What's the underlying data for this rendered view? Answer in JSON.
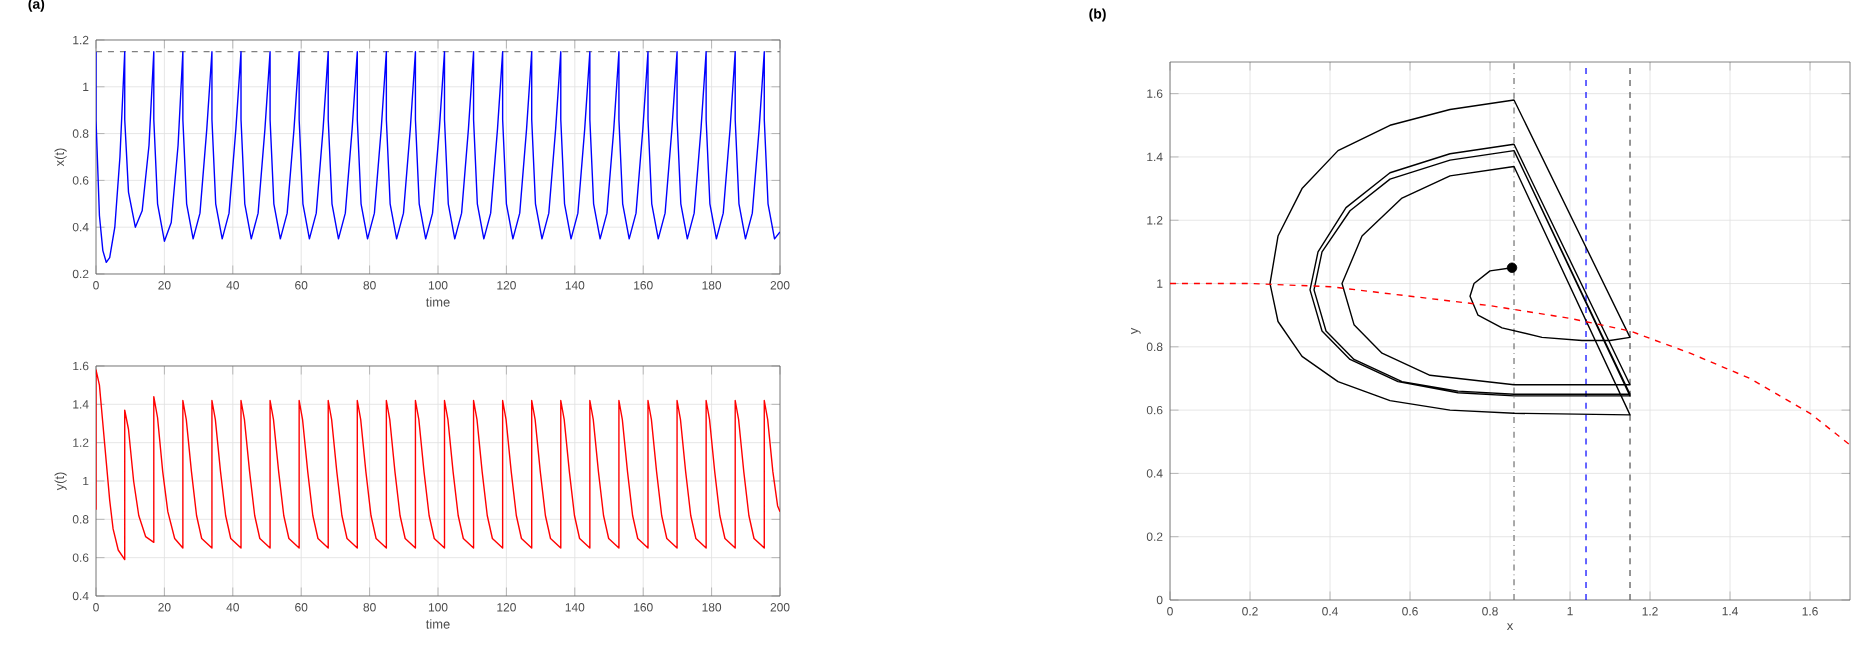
{
  "chart_data": [
    {
      "type": "line",
      "title": "(a)",
      "xlabel": "time",
      "ylabel": "x(t)",
      "xlim": [
        0,
        200
      ],
      "ylim": [
        0.2,
        1.2
      ],
      "xticks": [
        0,
        20,
        40,
        60,
        80,
        100,
        120,
        140,
        160,
        180,
        200
      ],
      "yticks": [
        0.2,
        0.4,
        0.6,
        0.8,
        1,
        1.2
      ],
      "grid": true,
      "ref_lines": [
        {
          "axis": "y",
          "value": 1.15,
          "color": "#808080",
          "line_style": "dashed"
        }
      ],
      "series": [
        {
          "color": "#0000ff",
          "line_style": "solid",
          "x": [
            0,
            0,
            1,
            2,
            3,
            4,
            5.5,
            7,
            8.4,
            8.4,
            9.5,
            11.5,
            13.5,
            15.5,
            16.9,
            16.9,
            18,
            20,
            22,
            24,
            25.4,
            25.4,
            26.5,
            28.4,
            30.4,
            32.4,
            33.9,
            33.9,
            35,
            36.9,
            38.9,
            40.9,
            42.4,
            42.4,
            43.5,
            45.4,
            47.4,
            49.4,
            50.9,
            50.9,
            52,
            53.9,
            55.9,
            57.9,
            59.4,
            59.4,
            60.5,
            62.4,
            64.4,
            66.4,
            67.9,
            67.9,
            69,
            70.9,
            72.9,
            74.9,
            76.4,
            76.4,
            77.5,
            79.4,
            81.4,
            83.4,
            84.9,
            84.9,
            86,
            87.9,
            89.9,
            91.9,
            93.4,
            93.4,
            94.5,
            96.4,
            98.4,
            100.4,
            101.9,
            101.9,
            103,
            104.9,
            106.9,
            108.9,
            110.4,
            110.4,
            111.5,
            113.4,
            115.4,
            117.4,
            118.9,
            118.9,
            120,
            121.9,
            123.9,
            125.9,
            127.4,
            127.4,
            128.5,
            130.4,
            132.4,
            134.4,
            135.9,
            135.9,
            137,
            138.9,
            140.9,
            142.9,
            144.4,
            144.4,
            145.5,
            147.4,
            149.4,
            151.4,
            152.9,
            152.9,
            154,
            155.9,
            157.9,
            159.9,
            161.4,
            161.4,
            162.5,
            164.4,
            166.4,
            168.4,
            169.9,
            169.9,
            171,
            172.9,
            174.9,
            176.9,
            178.4,
            178.4,
            179.5,
            181.4,
            183.4,
            185.4,
            186.9,
            186.9,
            188,
            189.9,
            191.9,
            193.9,
            195.4,
            195.4,
            196.5,
            198.4,
            200
          ],
          "values": [
            1.15,
            0.86,
            0.45,
            0.3,
            0.25,
            0.27,
            0.4,
            0.7,
            1.15,
            0.86,
            0.55,
            0.4,
            0.47,
            0.75,
            1.15,
            0.86,
            0.5,
            0.34,
            0.42,
            0.75,
            1.15,
            0.86,
            0.5,
            0.35,
            0.46,
            0.82,
            1.15,
            0.86,
            0.5,
            0.35,
            0.46,
            0.82,
            1.15,
            0.86,
            0.5,
            0.35,
            0.46,
            0.82,
            1.15,
            0.86,
            0.5,
            0.35,
            0.46,
            0.82,
            1.15,
            0.86,
            0.5,
            0.35,
            0.46,
            0.82,
            1.15,
            0.86,
            0.5,
            0.35,
            0.46,
            0.82,
            1.15,
            0.86,
            0.5,
            0.35,
            0.46,
            0.82,
            1.15,
            0.86,
            0.5,
            0.35,
            0.46,
            0.82,
            1.15,
            0.86,
            0.5,
            0.35,
            0.46,
            0.82,
            1.15,
            0.86,
            0.5,
            0.35,
            0.46,
            0.82,
            1.15,
            0.86,
            0.5,
            0.35,
            0.46,
            0.82,
            1.15,
            0.86,
            0.5,
            0.35,
            0.46,
            0.82,
            1.15,
            0.86,
            0.5,
            0.35,
            0.46,
            0.82,
            1.15,
            0.86,
            0.5,
            0.35,
            0.46,
            0.82,
            1.15,
            0.86,
            0.5,
            0.35,
            0.46,
            0.82,
            1.15,
            0.86,
            0.5,
            0.35,
            0.46,
            0.82,
            1.15,
            0.86,
            0.5,
            0.35,
            0.46,
            0.82,
            1.15,
            0.86,
            0.5,
            0.35,
            0.46,
            0.82,
            1.15,
            0.86,
            0.5,
            0.35,
            0.46,
            0.82,
            1.15,
            0.86,
            0.5,
            0.35,
            0.46,
            0.82,
            1.15,
            0.86,
            0.5,
            0.35,
            0.38
          ]
        }
      ]
    },
    {
      "type": "line",
      "xlabel": "time",
      "ylabel": "y(t)",
      "xlim": [
        0,
        200
      ],
      "ylim": [
        0.4,
        1.6
      ],
      "xticks": [
        0,
        20,
        40,
        60,
        80,
        100,
        120,
        140,
        160,
        180,
        200
      ],
      "yticks": [
        0.4,
        0.6,
        0.8,
        1,
        1.2,
        1.4,
        1.6
      ],
      "grid": true,
      "series": [
        {
          "color": "#ff0000",
          "line_style": "solid",
          "x": [
            0,
            0,
            1,
            2,
            3,
            4,
            5,
            6.5,
            8.4,
            8.4,
            9.5,
            11,
            12.5,
            14.5,
            16.9,
            16.9,
            18,
            19.5,
            21,
            23,
            25.4,
            25.4,
            26.4,
            27.9,
            29.4,
            30.9,
            33.9,
            33.9,
            34.9,
            36.4,
            37.9,
            39.4,
            42.4,
            42.4,
            43.4,
            44.9,
            46.4,
            47.9,
            50.9,
            50.9,
            51.9,
            53.4,
            54.9,
            56.4,
            59.4,
            59.4,
            60.4,
            61.9,
            63.4,
            64.9,
            67.9,
            67.9,
            68.9,
            70.4,
            71.9,
            73.4,
            76.4,
            76.4,
            77.4,
            78.9,
            80.4,
            81.9,
            84.9,
            84.9,
            85.9,
            87.4,
            88.9,
            90.4,
            93.4,
            93.4,
            94.4,
            95.9,
            97.4,
            98.9,
            101.9,
            101.9,
            102.9,
            104.4,
            105.9,
            107.4,
            110.4,
            110.4,
            111.4,
            112.9,
            114.4,
            115.9,
            118.9,
            118.9,
            119.9,
            121.4,
            122.9,
            124.4,
            127.4,
            127.4,
            128.4,
            129.9,
            131.4,
            132.9,
            135.9,
            135.9,
            136.9,
            138.4,
            139.9,
            141.4,
            144.4,
            144.4,
            145.4,
            146.9,
            148.4,
            149.9,
            152.9,
            152.9,
            153.9,
            155.4,
            156.9,
            158.4,
            161.4,
            161.4,
            162.4,
            163.9,
            165.4,
            166.9,
            169.9,
            169.9,
            170.9,
            172.4,
            173.9,
            175.4,
            178.4,
            178.4,
            179.4,
            180.9,
            182.4,
            183.9,
            186.9,
            186.9,
            187.9,
            189.4,
            190.9,
            192.4,
            195.4,
            195.4,
            196.4,
            197.9,
            199.3,
            200
          ],
          "values": [
            0.85,
            1.58,
            1.5,
            1.3,
            1.1,
            0.9,
            0.75,
            0.64,
            0.59,
            1.37,
            1.27,
            1.0,
            0.82,
            0.71,
            0.68,
            1.44,
            1.33,
            1.05,
            0.84,
            0.7,
            0.65,
            1.42,
            1.32,
            1.05,
            0.82,
            0.7,
            0.65,
            1.42,
            1.32,
            1.05,
            0.82,
            0.7,
            0.65,
            1.42,
            1.32,
            1.05,
            0.82,
            0.7,
            0.65,
            1.42,
            1.32,
            1.05,
            0.82,
            0.7,
            0.65,
            1.42,
            1.32,
            1.05,
            0.82,
            0.7,
            0.65,
            1.42,
            1.32,
            1.05,
            0.82,
            0.7,
            0.65,
            1.42,
            1.32,
            1.05,
            0.82,
            0.7,
            0.65,
            1.42,
            1.32,
            1.05,
            0.82,
            0.7,
            0.65,
            1.42,
            1.32,
            1.05,
            0.82,
            0.7,
            0.65,
            1.42,
            1.32,
            1.05,
            0.82,
            0.7,
            0.65,
            1.42,
            1.32,
            1.05,
            0.82,
            0.7,
            0.65,
            1.42,
            1.32,
            1.05,
            0.82,
            0.7,
            0.65,
            1.42,
            1.32,
            1.05,
            0.82,
            0.7,
            0.65,
            1.42,
            1.32,
            1.05,
            0.82,
            0.7,
            0.65,
            1.42,
            1.32,
            1.05,
            0.82,
            0.7,
            0.65,
            1.42,
            1.32,
            1.05,
            0.82,
            0.7,
            0.65,
            1.42,
            1.32,
            1.05,
            0.82,
            0.7,
            0.65,
            1.42,
            1.32,
            1.05,
            0.82,
            0.7,
            0.65,
            1.42,
            1.32,
            1.05,
            0.82,
            0.7,
            0.65,
            1.42,
            1.32,
            1.05,
            0.82,
            0.7,
            0.65,
            1.42,
            1.32,
            1.05,
            0.87,
            0.84
          ]
        }
      ]
    },
    {
      "type": "line",
      "title": "(b)",
      "xlabel": "x",
      "ylabel": "y",
      "xlim": [
        0,
        1.7
      ],
      "ylim": [
        0,
        1.7
      ],
      "xticks": [
        0,
        0.2,
        0.4,
        0.6,
        0.8,
        1,
        1.2,
        1.4,
        1.6
      ],
      "yticks": [
        0,
        0.2,
        0.4,
        0.6,
        0.8,
        1,
        1.2,
        1.4,
        1.6
      ],
      "grid": true,
      "ref_lines": [
        {
          "axis": "x",
          "value": 0.86,
          "color": "#707070",
          "line_style": "dashdot"
        },
        {
          "axis": "x",
          "value": 1.04,
          "color": "#0000ff",
          "line_style": "dashed"
        },
        {
          "axis": "x",
          "value": 1.15,
          "color": "#505050",
          "line_style": "dashed"
        }
      ],
      "series": [
        {
          "color": "#000000",
          "line_style": "solid",
          "x": [
            0.855,
            0.8,
            0.76,
            0.75,
            0.77,
            0.83,
            0.93,
            1.03,
            1.1,
            1.15,
            0.86,
            0.7,
            0.55,
            0.42,
            0.33,
            0.27,
            0.25,
            0.27,
            0.33,
            0.42,
            0.55,
            0.7,
            0.86,
            1.15,
            0.86,
            0.7,
            0.58,
            0.48,
            0.43,
            0.46,
            0.53,
            0.65,
            0.86,
            1.15,
            0.86,
            0.7,
            0.55,
            0.44,
            0.37,
            0.35,
            0.38,
            0.45,
            0.57,
            0.72,
            0.86,
            1.15,
            0.86,
            0.7,
            0.55,
            0.45,
            0.38,
            0.36,
            0.39,
            0.46,
            0.58,
            0.72,
            0.86,
            1.15,
            0.86
          ],
          "values": [
            1.05,
            1.04,
            1.0,
            0.96,
            0.9,
            0.86,
            0.83,
            0.82,
            0.82,
            0.83,
            1.58,
            1.55,
            1.5,
            1.42,
            1.3,
            1.15,
            1.0,
            0.88,
            0.77,
            0.69,
            0.63,
            0.6,
            0.59,
            0.585,
            1.37,
            1.34,
            1.27,
            1.15,
            1.0,
            0.87,
            0.78,
            0.71,
            0.68,
            0.68,
            1.44,
            1.41,
            1.35,
            1.24,
            1.1,
            0.98,
            0.85,
            0.76,
            0.69,
            0.655,
            0.645,
            0.645,
            1.42,
            1.39,
            1.33,
            1.23,
            1.1,
            0.98,
            0.85,
            0.76,
            0.69,
            0.66,
            0.65,
            0.65,
            1.42
          ]
        },
        {
          "color": "#ff0000",
          "line_style": "dashed",
          "x": [
            0,
            0.2,
            0.4,
            0.6,
            0.8,
            1.0,
            1.15,
            1.3,
            1.45,
            1.6,
            1.7
          ],
          "values": [
            1.0,
            1.0,
            0.99,
            0.96,
            0.93,
            0.89,
            0.85,
            0.78,
            0.7,
            0.59,
            0.49
          ]
        },
        {
          "type": "scatter",
          "color": "#000000",
          "marker": "circle",
          "x": [
            0.855
          ],
          "values": [
            1.05
          ]
        }
      ]
    }
  ]
}
